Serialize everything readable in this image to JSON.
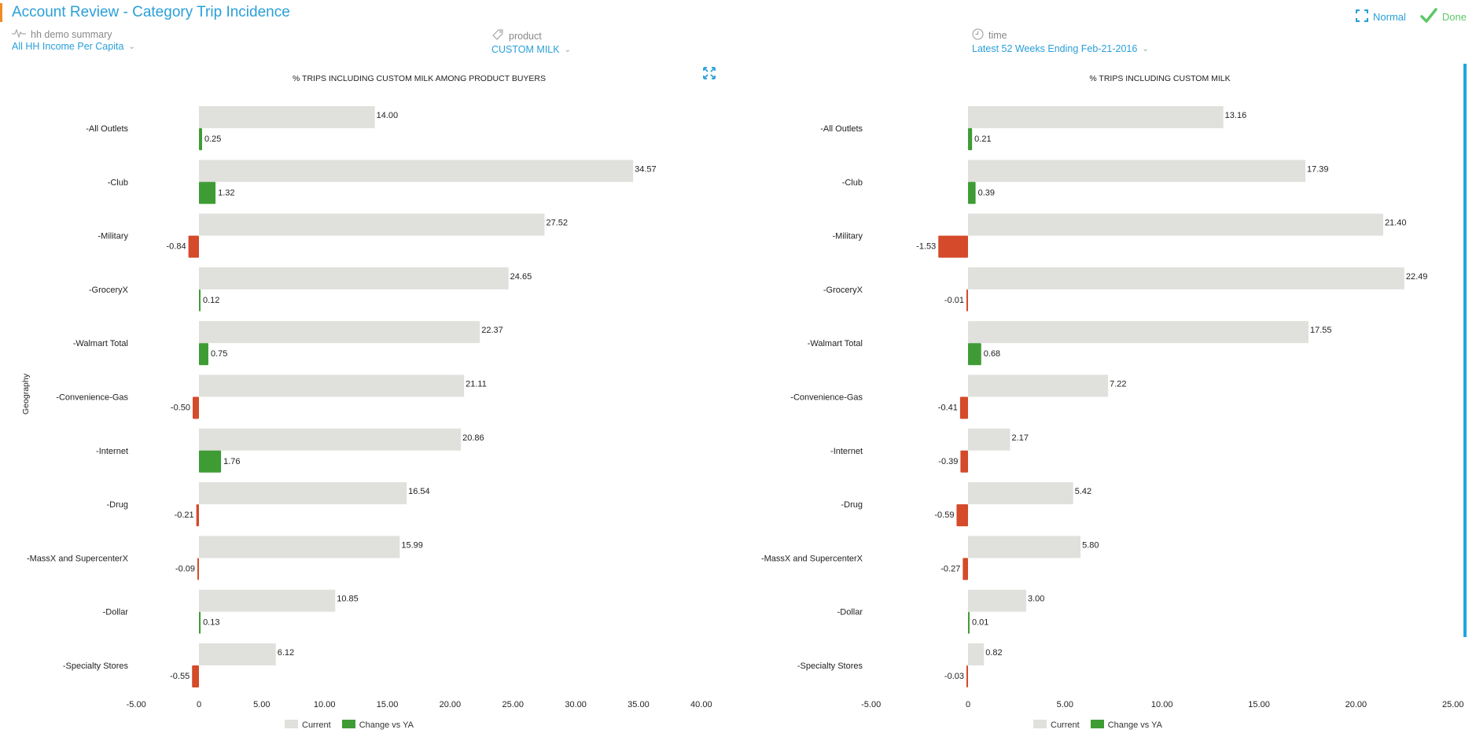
{
  "header": {
    "title": "Account Review - Category Trip Incidence",
    "normal_label": "Normal",
    "done_label": "Done"
  },
  "filters": {
    "demo": {
      "label": "hh demo summary",
      "value": "All HH Income Per Capita",
      "icon": "pulse-icon"
    },
    "product": {
      "label": "product",
      "value": "CUSTOM MILK",
      "icon": "tag-icon"
    },
    "time": {
      "label": "time",
      "value": "Latest 52 Weeks Ending Feb-21-2016",
      "icon": "clock-icon"
    }
  },
  "colors": {
    "accent": "#2a9fd8",
    "current": "#e0e0dc",
    "positive": "#3f9c35",
    "negative": "#d44a2a",
    "done": "#5ec768"
  },
  "y_axis_title": "Geography",
  "chart_data": [
    {
      "type": "bar",
      "orientation": "horizontal",
      "title": "% TRIPS INCLUDING CUSTOM MILK AMONG PRODUCT BUYERS",
      "ylabel": "Geography",
      "xlabel": "",
      "categories": [
        "-All Outlets",
        "-Club",
        "-Military",
        "-GroceryX",
        "-Walmart Total",
        "-Convenience-Gas",
        "-Internet",
        "-Drug",
        "-MassX and SupercenterX",
        "-Dollar",
        "-Specialty Stores"
      ],
      "series": [
        {
          "name": "Current",
          "values": [
            14.0,
            34.57,
            27.52,
            24.65,
            22.37,
            21.11,
            20.86,
            16.54,
            15.99,
            10.85,
            6.12
          ]
        },
        {
          "name": "Change vs YA",
          "values": [
            0.25,
            1.32,
            -0.84,
            0.12,
            0.75,
            -0.5,
            1.76,
            -0.21,
            -0.09,
            0.13,
            -0.55
          ]
        }
      ],
      "xlim": [
        -5,
        40
      ],
      "xticks": [
        -5,
        0,
        5,
        10,
        15,
        20,
        25,
        30,
        35,
        40
      ],
      "xtick_labels": [
        "-5.00",
        "0",
        "5.00",
        "10.00",
        "15.00",
        "20.00",
        "25.00",
        "30.00",
        "35.00",
        "40.00"
      ],
      "grid": false,
      "legend": [
        "Current",
        "Change vs YA"
      ],
      "legend_position": "bottom"
    },
    {
      "type": "bar",
      "orientation": "horizontal",
      "title": "% TRIPS INCLUDING CUSTOM MILK",
      "ylabel": "",
      "xlabel": "",
      "categories": [
        "-All Outlets",
        "-Club",
        "-Military",
        "-GroceryX",
        "-Walmart Total",
        "-Convenience-Gas",
        "-Internet",
        "-Drug",
        "-MassX and SupercenterX",
        "-Dollar",
        "-Specialty Stores"
      ],
      "series": [
        {
          "name": "Current",
          "values": [
            13.16,
            17.39,
            21.4,
            22.49,
            17.55,
            7.22,
            2.17,
            5.42,
            5.8,
            3.0,
            0.82
          ]
        },
        {
          "name": "Change vs YA",
          "values": [
            0.21,
            0.39,
            -1.53,
            -0.01,
            0.68,
            -0.41,
            -0.39,
            -0.59,
            -0.27,
            0.01,
            -0.03
          ]
        }
      ],
      "xlim": [
        -5,
        25
      ],
      "xticks": [
        -5,
        0,
        5,
        10,
        15,
        20,
        25
      ],
      "xtick_labels": [
        "-5.00",
        "0",
        "5.00",
        "10.00",
        "15.00",
        "20.00",
        "25.00"
      ],
      "grid": false,
      "legend": [
        "Current",
        "Change vs YA"
      ],
      "legend_position": "bottom"
    }
  ]
}
